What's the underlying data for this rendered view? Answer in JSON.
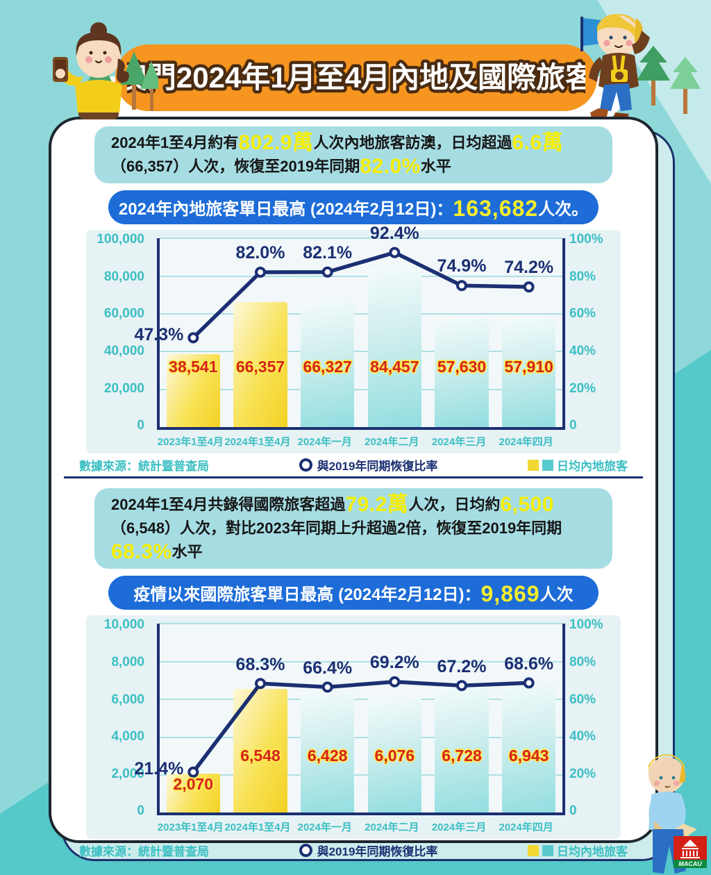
{
  "title": "澳門2024年1月至4月內地及國際旅客",
  "colors": {
    "banner_orange": "#f6951f",
    "background_teal": "#8fd8d9",
    "background_teal_dark": "#55c8c9",
    "highlight_yellow": "#f6ee00",
    "pill_blue": "#1d6cd8",
    "line_navy": "#1b2f72",
    "value_red": "#d3231e",
    "axis_teal": "#3bbfc3",
    "bar_yellow": "#f3d123",
    "bar_teal": "#93dee0"
  },
  "sections": [
    {
      "summary": {
        "a": "2024年1至4月約有",
        "b": "802.9萬",
        "c": "人次內地旅客訪澳，日均超過",
        "d": "6.6萬",
        "e": "（66,357）人次，恢復至2019年同期",
        "f": "82.0%",
        "g": "水平"
      },
      "pill": {
        "prefix": "2024年內地旅客單日最高 (2024年2月12日)：",
        "value": "163,682",
        "suffix": "人次。"
      }
    },
    {
      "summary": {
        "a": "2024年1至4月共錄得國際旅客超過",
        "b": "79.2萬",
        "c": "人次，日均約",
        "d": "6,500",
        "e": "（6,548）人次，對比2023年同期上升超過2倍，恢復至2019年同期",
        "f": "68.3%",
        "g": "水平"
      },
      "pill": {
        "prefix": "疫情以來國際旅客單日最高 (2024年2月12日)：",
        "value": "9,869",
        "suffix": "人次"
      }
    }
  ],
  "chart_data": [
    {
      "type": "bar",
      "categories": [
        "2023年1至4月",
        "2024年1至4月",
        "2024年一月",
        "2024年二月",
        "2024年三月",
        "2024年四月"
      ],
      "series": [
        {
          "name": "日均內地旅客",
          "type": "bar",
          "values": [
            38541,
            66357,
            66327,
            84457,
            57630,
            57910
          ],
          "labels": [
            "38,541",
            "66,357",
            "66,327",
            "84,457",
            "57,630",
            "57,910"
          ]
        },
        {
          "name": "與2019年同期恢復比率",
          "type": "line",
          "values": [
            47.3,
            82.0,
            82.1,
            92.4,
            74.9,
            74.2
          ],
          "labels": [
            "47.3%",
            "82.0%",
            "82.1%",
            "92.4%",
            "74.9%",
            "74.2%"
          ]
        }
      ],
      "ylim_left": [
        0,
        100000
      ],
      "ylim_right": [
        0,
        100
      ],
      "yticks_left": [
        "100,000",
        "80,000",
        "60,000",
        "40,000",
        "20,000",
        "0"
      ],
      "yticks_right": [
        "100%",
        "80%",
        "60%",
        "40%",
        "20%",
        "0"
      ],
      "bar_colors": [
        "yellow",
        "yellow",
        "teal",
        "teal",
        "teal",
        "teal"
      ],
      "grid": "on",
      "legend_position": "bottom"
    },
    {
      "type": "bar",
      "categories": [
        "2023年1至4月",
        "2024年1至4月",
        "2024年一月",
        "2024年二月",
        "2024年三月",
        "2024年四月"
      ],
      "series": [
        {
          "name": "日均內地旅客",
          "type": "bar",
          "values": [
            2070,
            6548,
            6428,
            6076,
            6728,
            6943
          ],
          "labels": [
            "2,070",
            "6,548",
            "6,428",
            "6,076",
            "6,728",
            "6,943"
          ]
        },
        {
          "name": "與2019年同期恢復比率",
          "type": "line",
          "values": [
            21.4,
            68.3,
            66.4,
            69.2,
            67.2,
            68.6
          ],
          "labels": [
            "21.4%",
            "68.3%",
            "66.4%",
            "69.2%",
            "67.2%",
            "68.6%"
          ]
        }
      ],
      "ylim_left": [
        0,
        10000
      ],
      "ylim_right": [
        0,
        100
      ],
      "yticks_left": [
        "10,000",
        "8,000",
        "6,000",
        "4,000",
        "2,000",
        "0"
      ],
      "yticks_right": [
        "100%",
        "80%",
        "60%",
        "40%",
        "20%",
        "0"
      ],
      "bar_colors": [
        "yellow",
        "yellow",
        "teal",
        "teal",
        "teal",
        "teal"
      ],
      "grid": "on",
      "legend_position": "bottom"
    }
  ],
  "footer": {
    "source": "數據來源：統計暨普查局",
    "line_legend": "與2019年同期恢復比率",
    "bar_legend": "日均內地旅客"
  },
  "logo": {
    "label": "MACAU"
  }
}
